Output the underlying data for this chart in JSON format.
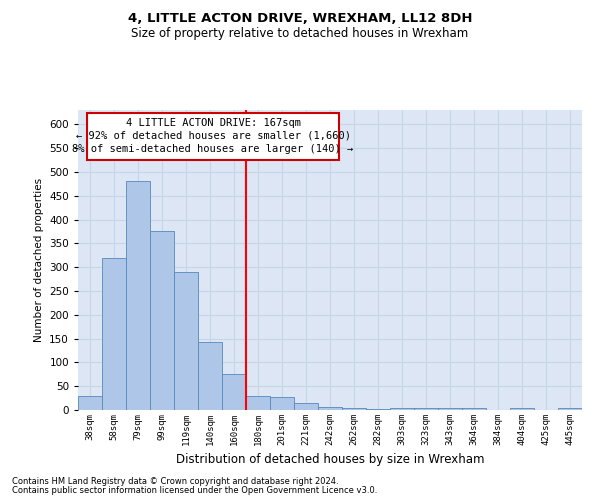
{
  "title1": "4, LITTLE ACTON DRIVE, WREXHAM, LL12 8DH",
  "title2": "Size of property relative to detached houses in Wrexham",
  "xlabel": "Distribution of detached houses by size in Wrexham",
  "ylabel": "Number of detached properties",
  "categories": [
    "38sqm",
    "58sqm",
    "79sqm",
    "99sqm",
    "119sqm",
    "140sqm",
    "160sqm",
    "180sqm",
    "201sqm",
    "221sqm",
    "242sqm",
    "262sqm",
    "282sqm",
    "303sqm",
    "323sqm",
    "343sqm",
    "364sqm",
    "384sqm",
    "404sqm",
    "425sqm",
    "445sqm"
  ],
  "values": [
    30,
    320,
    480,
    375,
    290,
    143,
    75,
    30,
    27,
    15,
    7,
    5,
    3,
    5,
    5,
    5,
    5,
    0,
    5,
    0,
    5
  ],
  "bar_color": "#aec6e8",
  "bar_edge_color": "#5588bb",
  "grid_color": "#c8d4e8",
  "background_color": "#dce6f5",
  "annotation_box_color": "#ffffff",
  "annotation_border_color": "#cc0000",
  "annotation_line1": "4 LITTLE ACTON DRIVE: 167sqm",
  "annotation_line2": "← 92% of detached houses are smaller (1,660)",
  "annotation_line3": "8% of semi-detached houses are larger (140) →",
  "red_line_x": 6.5,
  "ylim": [
    0,
    630
  ],
  "yticks": [
    0,
    50,
    100,
    150,
    200,
    250,
    300,
    350,
    400,
    450,
    500,
    550,
    600
  ],
  "footnote1": "Contains HM Land Registry data © Crown copyright and database right 2024.",
  "footnote2": "Contains public sector information licensed under the Open Government Licence v3.0."
}
